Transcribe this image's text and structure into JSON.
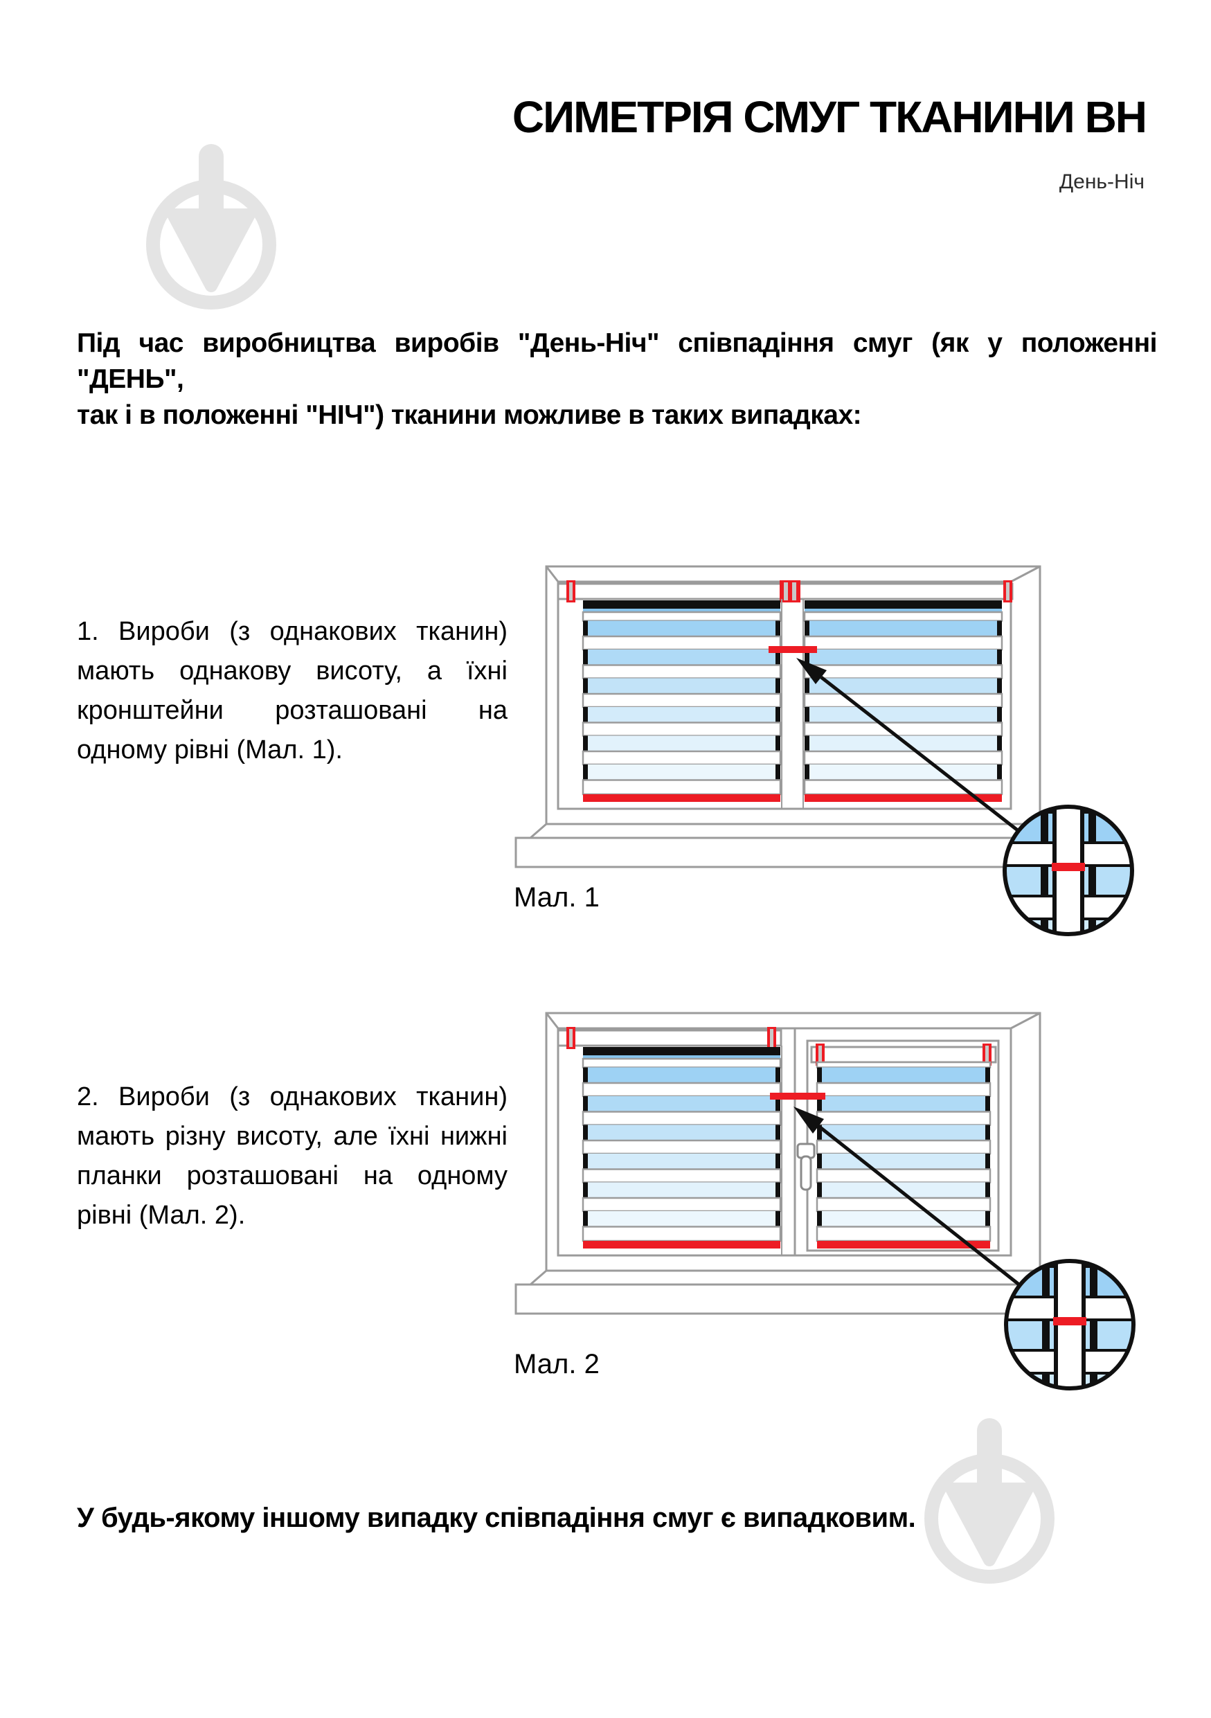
{
  "page": {
    "title": "СИМЕТРІЯ СМУГ ТКАНИНИ ВН",
    "subtitle": "День-Ніч",
    "intro_line1": "Під час виробництва виробів \"День-Ніч\" співпадіння смуг (як у положенні \"ДЕНЬ\",",
    "intro_line2": "так і в положенні \"НІЧ\") тканини можливе в таких випадках:",
    "case1": "1. Вироби (з однакових тканин) мають однакову висоту, а їхні кронштейни розташовані на одному рівні (Мал. 1).",
    "case2": "2. Вироби (з однакових тканин) мають різну висоту, але їхні нижні планки розташовані на одному рівні (Мал. 2).",
    "figure1_caption": "Мал. 1",
    "figure2_caption": "Мал. 2",
    "footer": "У будь-якому іншому випадку співпадіння смуг є випадковим."
  },
  "colors": {
    "accent_red": "#ed1c24",
    "frame_gray": "#9b9b9b",
    "fabric_blue": "#9ed2f4",
    "night_black": "#101010",
    "bracket_slot_gray": "#c9c9c9",
    "watermark_gray": "#e4e4e4"
  },
  "icons": {
    "watermark": "trowel-in-circle-icon"
  }
}
